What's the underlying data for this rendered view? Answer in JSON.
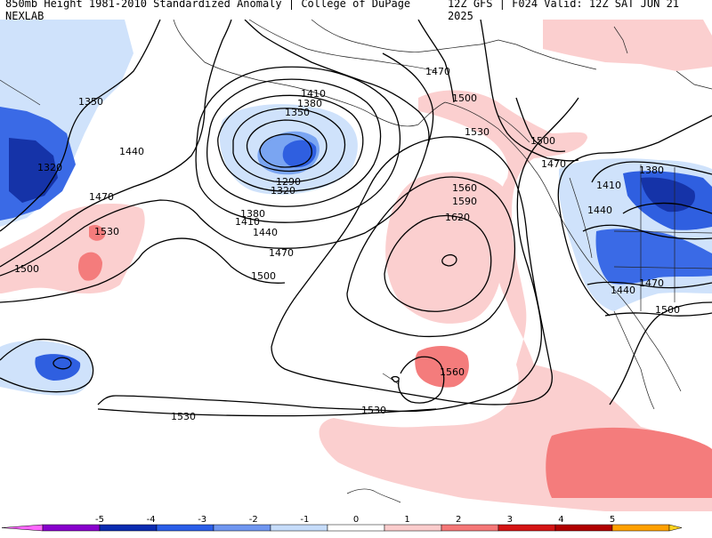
{
  "header": {
    "left_title": "850mb Height 1981-2010 Standardized Anomaly | College of DuPage NEXLAB",
    "right_title": "12Z GFS | F024 Valid: 12Z SAT JUN 21 2025"
  },
  "contour_labels": {
    "c1350_nw": "1350",
    "c1320_nw": "1320",
    "c1440_w": "1440",
    "c1470_w": "1470",
    "c1500_w": "1500",
    "c1530_w": "1530",
    "c1410": "1410",
    "c1380": "1380",
    "c1350": "1350",
    "c1290": "1290",
    "c1320": "1320",
    "c1380_b": "1380",
    "c1410_b": "1410",
    "c1440_b": "1440",
    "c1470_b": "1470",
    "c1500_b": "1500",
    "c1470_n": "1470",
    "c1500_n": "1500",
    "c1530_n": "1530",
    "c1560": "1560",
    "c1590": "1590",
    "c1620": "1620",
    "c1560_s": "1560",
    "c1530_s": "1530",
    "c1530_sw": "1530",
    "c1500_ne": "1500",
    "c1470_ne": "1470",
    "c1380_ne": "1380",
    "c1410_ne": "1410",
    "c1440_ne": "1440",
    "c1440_e": "1440",
    "c1470_e": "1470",
    "c1500_e": "1500"
  },
  "legend": {
    "ticks": [
      "-5",
      "-4",
      "-3",
      "-2",
      "-1",
      "0",
      "1",
      "2",
      "3",
      "4",
      "5"
    ],
    "colors": [
      "#ff66ff",
      "#8800cc",
      "#0a2bb0",
      "#2a5ee8",
      "#6f96f0",
      "#c6dcfa",
      "#ffffff",
      "#fbcccc",
      "#f57777",
      "#d41414",
      "#b00000",
      "#ffa000",
      "#ffd21e"
    ]
  },
  "colors": {
    "neg1": "#cfe2fb",
    "neg2": "#7aa5f2",
    "neg3": "#2f5fe0",
    "neg4": "#1533a8",
    "pos1": "#fbcfcf",
    "pos2": "#f47c7c",
    "pos3": "#e03030",
    "contour": "#000000"
  }
}
